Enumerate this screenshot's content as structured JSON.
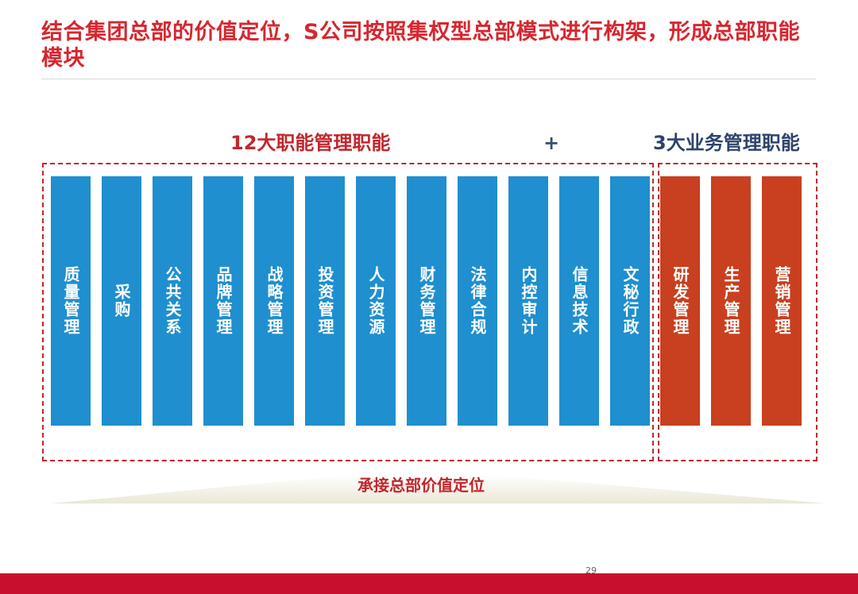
{
  "title": "结合集团总部的价值定位，S公司按照集权型总部模式进行构架，形成总部职能模块",
  "functional": {
    "heading": "12大职能管理职能",
    "items": [
      "质量管理",
      "采购",
      "公共关系",
      "品牌管理",
      "战略管理",
      "投资管理",
      "人力资源",
      "财务管理",
      "法律合规",
      "内控审计",
      "信息技术",
      "文秘行政"
    ]
  },
  "plus": "+",
  "business": {
    "heading": "3大业务管理职能",
    "items": [
      "研发管理",
      "生产管理",
      "营销管理"
    ]
  },
  "base_label": "承接总部价值定位",
  "page_number": "29",
  "colors": {
    "title_red": "#d7262f",
    "functional_blue": "#1f8fcf",
    "business_red": "#c8401f",
    "dash_red": "#c1272d",
    "heading_navy": "#2f436b",
    "footer_red": "#c8102e"
  }
}
